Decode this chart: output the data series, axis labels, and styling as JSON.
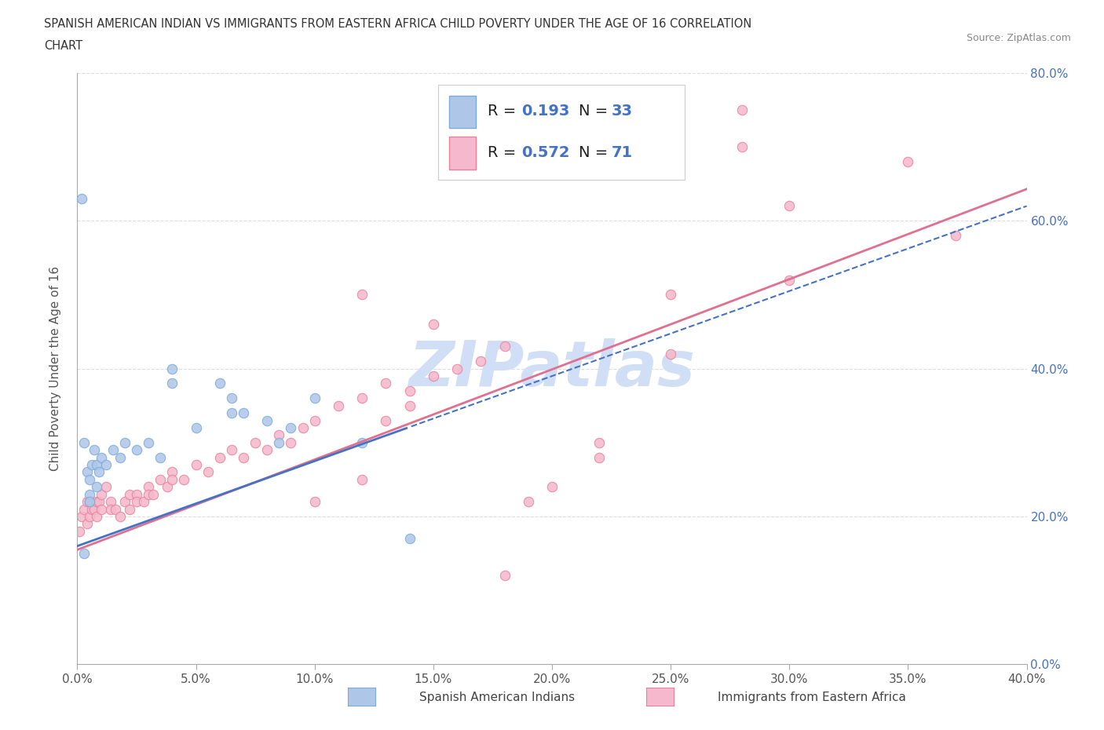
{
  "title_line1": "SPANISH AMERICAN INDIAN VS IMMIGRANTS FROM EASTERN AFRICA CHILD POVERTY UNDER THE AGE OF 16 CORRELATION",
  "title_line2": "CHART",
  "source": "Source: ZipAtlas.com",
  "ylabel": "Child Poverty Under the Age of 16",
  "xmin": 0.0,
  "xmax": 0.4,
  "ymin": 0.0,
  "ymax": 0.8,
  "xtick_vals": [
    0.0,
    0.05,
    0.1,
    0.15,
    0.2,
    0.25,
    0.3,
    0.35,
    0.4
  ],
  "ytick_vals": [
    0.0,
    0.2,
    0.4,
    0.6,
    0.8
  ],
  "series1_label": "Spanish American Indians",
  "series1_color": "#aec6e8",
  "series1_edge": "#7aabda",
  "series1_R": 0.193,
  "series1_N": 33,
  "series2_label": "Immigrants from Eastern Africa",
  "series2_color": "#f5b8cc",
  "series2_edge": "#e8829c",
  "series2_R": 0.572,
  "series2_N": 71,
  "trend1_color": "#4472c4",
  "trend2_color": "#e07090",
  "watermark": "ZIPatlas",
  "watermark_color": "#d0dff5",
  "legend_R_color": "#4472c4",
  "background_color": "#ffffff",
  "series1_x": [
    0.002,
    0.003,
    0.004,
    0.005,
    0.005,
    0.006,
    0.007,
    0.008,
    0.01,
    0.012,
    0.015,
    0.018,
    0.02,
    0.025,
    0.03,
    0.035,
    0.04,
    0.05,
    0.065,
    0.07,
    0.08,
    0.085,
    0.09,
    0.1,
    0.04,
    0.06,
    0.065,
    0.12,
    0.14,
    0.005,
    0.008,
    0.009,
    0.003
  ],
  "series1_y": [
    0.63,
    0.3,
    0.26,
    0.25,
    0.23,
    0.27,
    0.29,
    0.27,
    0.28,
    0.27,
    0.29,
    0.28,
    0.3,
    0.29,
    0.3,
    0.28,
    0.38,
    0.32,
    0.36,
    0.34,
    0.33,
    0.3,
    0.32,
    0.36,
    0.4,
    0.38,
    0.34,
    0.3,
    0.17,
    0.22,
    0.24,
    0.26,
    0.15
  ],
  "series2_x": [
    0.001,
    0.002,
    0.003,
    0.004,
    0.004,
    0.005,
    0.005,
    0.006,
    0.007,
    0.008,
    0.008,
    0.009,
    0.01,
    0.01,
    0.012,
    0.014,
    0.014,
    0.016,
    0.018,
    0.02,
    0.022,
    0.022,
    0.025,
    0.025,
    0.028,
    0.03,
    0.03,
    0.032,
    0.035,
    0.038,
    0.04,
    0.04,
    0.045,
    0.05,
    0.055,
    0.06,
    0.065,
    0.07,
    0.075,
    0.08,
    0.085,
    0.09,
    0.095,
    0.1,
    0.11,
    0.12,
    0.13,
    0.14,
    0.15,
    0.16,
    0.17,
    0.18,
    0.19,
    0.2,
    0.22,
    0.25,
    0.28,
    0.3,
    0.13,
    0.14,
    0.15,
    0.22,
    0.25,
    0.28,
    0.3,
    0.35,
    0.37,
    0.1,
    0.12,
    0.12,
    0.18
  ],
  "series2_y": [
    0.18,
    0.2,
    0.21,
    0.22,
    0.19,
    0.22,
    0.2,
    0.21,
    0.21,
    0.2,
    0.22,
    0.22,
    0.23,
    0.21,
    0.24,
    0.22,
    0.21,
    0.21,
    0.2,
    0.22,
    0.21,
    0.23,
    0.23,
    0.22,
    0.22,
    0.24,
    0.23,
    0.23,
    0.25,
    0.24,
    0.26,
    0.25,
    0.25,
    0.27,
    0.26,
    0.28,
    0.29,
    0.28,
    0.3,
    0.29,
    0.31,
    0.3,
    0.32,
    0.33,
    0.35,
    0.36,
    0.38,
    0.37,
    0.39,
    0.4,
    0.41,
    0.43,
    0.22,
    0.24,
    0.28,
    0.5,
    0.7,
    0.52,
    0.33,
    0.35,
    0.46,
    0.3,
    0.42,
    0.75,
    0.62,
    0.68,
    0.58,
    0.22,
    0.25,
    0.5,
    0.12
  ]
}
